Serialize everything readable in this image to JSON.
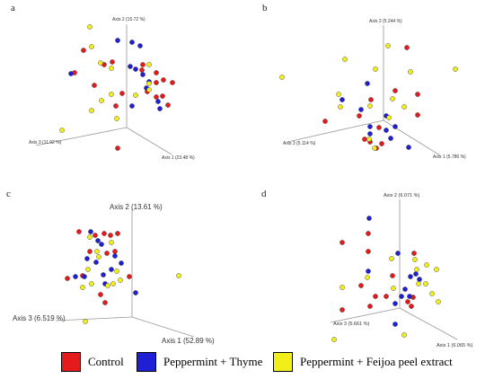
{
  "colors": {
    "control": "#e41a1c",
    "thyme": "#1f1fd6",
    "feijoa": "#f2ee1a"
  },
  "legend": [
    {
      "label": "Control",
      "color": "#e41a1c"
    },
    {
      "label": "Peppermint + Thyme",
      "color": "#1f1fd6"
    },
    {
      "label": "Peppermint + Feijoa peel extract",
      "color": "#f2ee1a"
    }
  ],
  "chart_data": [
    {
      "type": "scatter",
      "panel": "a",
      "axes": {
        "axis1": "Axis 1 (23.48 %)",
        "axis2": "Axis 2 (15.72 %)",
        "axis3": "Axis 3 (11.92 %)"
      },
      "series": [
        {
          "name": "Control",
          "points": [
            [
              93,
              56
            ],
            [
              83,
              81
            ],
            [
              125,
              69
            ],
            [
              116,
              72
            ],
            [
              159,
              72
            ],
            [
              158,
              78
            ],
            [
              174,
              81
            ],
            [
              192,
              92
            ],
            [
              174,
              92
            ],
            [
              182,
              89
            ],
            [
              105,
              95
            ],
            [
              164,
              102
            ],
            [
              174,
              108
            ],
            [
              181,
              107
            ],
            [
              187,
              117
            ],
            [
              129,
              118
            ],
            [
              136,
              104
            ],
            [
              131,
              165
            ]
          ]
        },
        {
          "name": "Peppermint + Thyme",
          "points": [
            [
              131,
              45
            ],
            [
              147,
              47
            ],
            [
              156,
              51
            ],
            [
              145,
              74
            ],
            [
              151,
              77
            ],
            [
              159,
              83
            ],
            [
              79,
              82
            ],
            [
              166,
              91
            ],
            [
              163,
              98
            ],
            [
              176,
              113
            ],
            [
              178,
              121
            ],
            [
              147,
              118
            ]
          ]
        },
        {
          "name": "Peppermint + Feijoa peel extract",
          "points": [
            [
              100,
              30
            ],
            [
              102,
              52
            ],
            [
              112,
              70
            ],
            [
              124,
              76
            ],
            [
              166,
              72
            ],
            [
              166,
              93
            ],
            [
              166,
              100
            ],
            [
              113,
              112
            ],
            [
              124,
              105
            ],
            [
              151,
              106
            ],
            [
              130,
              132
            ],
            [
              102,
              123
            ],
            [
              69,
              145
            ]
          ]
        }
      ]
    },
    {
      "type": "scatter",
      "panel": "b",
      "axes": {
        "axis1": "Axis 1 (5.786 %)",
        "axis2": "Axis 2 (5.244 %)",
        "axis3": "Axis 3 (5.114 %)"
      },
      "series": [
        {
          "name": "Control",
          "points": [
            [
              453,
              53
            ],
            [
              440,
              101
            ],
            [
              465,
              105
            ],
            [
              413,
              111
            ],
            [
              362,
              135
            ],
            [
              400,
              129
            ],
            [
              406,
              155
            ],
            [
              412,
              158
            ],
            [
              419,
              165
            ],
            [
              425,
              160
            ],
            [
              465,
              128
            ],
            [
              422,
              142
            ]
          ]
        },
        {
          "name": "Peppermint + Thyme",
          "points": [
            [
              409,
              93
            ],
            [
              381,
              111
            ],
            [
              402,
              122
            ],
            [
              430,
              129
            ],
            [
              440,
              141
            ],
            [
              412,
              149
            ],
            [
              430,
              145
            ],
            [
              435,
              154
            ],
            [
              412,
              141
            ],
            [
              455,
              164
            ]
          ]
        },
        {
          "name": "Peppermint + Feijoa peel extract",
          "points": [
            [
              314,
              86
            ],
            [
              384,
              66
            ],
            [
              432,
              51
            ],
            [
              507,
              77
            ],
            [
              457,
              80
            ],
            [
              418,
              77
            ],
            [
              377,
              105
            ],
            [
              379,
              119
            ],
            [
              412,
              118
            ],
            [
              450,
              119
            ],
            [
              437,
              110
            ],
            [
              433,
              131
            ],
            [
              411,
              155
            ],
            [
              417,
              165
            ]
          ]
        }
      ]
    },
    {
      "type": "scatter",
      "panel": "c",
      "axes": {
        "axis1": "Axis 1 (52.89 %)",
        "axis2": "Axis 2 (13.61 %)",
        "axis3": "Axis 3 (6.519 %)"
      },
      "series": [
        {
          "name": "Control",
          "points": [
            [
              88,
              258
            ],
            [
              106,
              262
            ],
            [
              116,
              260
            ],
            [
              123,
              262
            ],
            [
              131,
              260
            ],
            [
              100,
              280
            ],
            [
              119,
              282
            ],
            [
              128,
              280
            ],
            [
              75,
              310
            ],
            [
              92,
              307
            ],
            [
              144,
              308
            ],
            [
              112,
              328
            ],
            [
              117,
              337
            ]
          ]
        },
        {
          "name": "Peppermint + Thyme",
          "points": [
            [
              101,
              258
            ],
            [
              109,
              268
            ],
            [
              113,
              272
            ],
            [
              97,
              288
            ],
            [
              128,
              285
            ],
            [
              107,
              292
            ],
            [
              135,
              293
            ],
            [
              84,
              308
            ],
            [
              94,
              308
            ],
            [
              115,
              306
            ],
            [
              117,
              316
            ],
            [
              151,
              326
            ],
            [
              124,
              300
            ]
          ]
        },
        {
          "name": "Peppermint + Feijoa peel extract",
          "points": [
            [
              100,
              264
            ],
            [
              124,
              270
            ],
            [
              108,
              280
            ],
            [
              110,
              286
            ],
            [
              98,
              300
            ],
            [
              102,
              316
            ],
            [
              120,
              318
            ],
            [
              126,
              316
            ],
            [
              134,
              312
            ],
            [
              130,
              302
            ],
            [
              92,
              320
            ],
            [
              199,
              307
            ],
            [
              95,
              358
            ]
          ]
        }
      ]
    },
    {
      "type": "scatter",
      "panel": "d",
      "axes": {
        "axis1": "Axis 1 (6.065 %)",
        "axis2": "Axis 2 (6.071 %)",
        "axis3": "Axis 3 (5.661 %)"
      },
      "series": [
        {
          "name": "Control",
          "points": [
            [
              410,
              260
            ],
            [
              410,
              280
            ],
            [
              381,
              270
            ],
            [
              461,
              282
            ],
            [
              437,
              307
            ],
            [
              402,
              318
            ],
            [
              418,
              330
            ],
            [
              381,
              345
            ],
            [
              412,
              341
            ],
            [
              430,
              330
            ],
            [
              454,
              336
            ],
            [
              460,
              331
            ],
            [
              458,
              341
            ]
          ]
        },
        {
          "name": "Peppermint + Thyme",
          "points": [
            [
              411,
              243
            ],
            [
              410,
              302
            ],
            [
              443,
              282
            ],
            [
              457,
              308
            ],
            [
              463,
              305
            ],
            [
              467,
              311
            ],
            [
              451,
              322
            ],
            [
              440,
              361
            ],
            [
              440,
              338
            ],
            [
              447,
              330
            ],
            [
              456,
              330
            ]
          ]
        },
        {
          "name": "Peppermint + Feijoa peel extract",
          "points": [
            [
              381,
              320
            ],
            [
              438,
              321
            ],
            [
              409,
              309
            ],
            [
              436,
              288
            ],
            [
              462,
              289
            ],
            [
              464,
              300
            ],
            [
              475,
              295
            ],
            [
              486,
              300
            ],
            [
              466,
              316
            ],
            [
              474,
              316
            ],
            [
              481,
              327
            ],
            [
              488,
              336
            ],
            [
              372,
              378
            ],
            [
              450,
              373
            ]
          ]
        }
      ]
    }
  ]
}
